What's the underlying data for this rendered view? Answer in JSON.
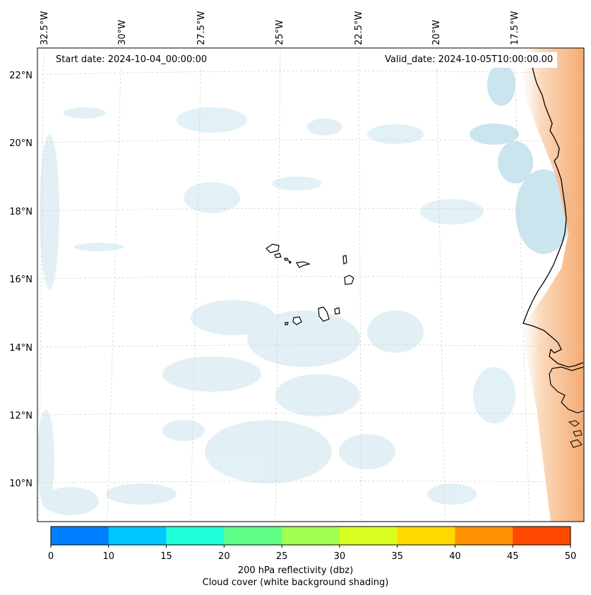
{
  "map": {
    "start_date_label": "Start date: 2024-10-04_00:00:00",
    "valid_date_label": "Valid_date: 2024-10-05T10:00:00.00",
    "longitude_labels": [
      "32.5°W",
      "30°W",
      "27.5°W",
      "25°W",
      "22.5°W",
      "20°W",
      "17.5°W"
    ],
    "latitude_labels": [
      "22°N",
      "20°N",
      "18°N",
      "16°N",
      "14°N",
      "12°N",
      "10°N"
    ],
    "colors": {
      "cloud_shading": "#b8dde8",
      "warm_field": "#f4a460",
      "coastline": "#000000",
      "gridline": "#cccccc"
    }
  },
  "colorbar": {
    "ticks": [
      "0",
      "10",
      "15",
      "20",
      "25",
      "30",
      "35",
      "40",
      "45",
      "50"
    ],
    "colors": [
      "#0080ff",
      "#00c8ff",
      "#20ffd8",
      "#60ff88",
      "#a0ff50",
      "#d8ff20",
      "#ffd800",
      "#ff9000",
      "#ff4800"
    ],
    "label": "200 hPa reflectivity (dbz)",
    "sublabel": "Cloud cover (white background shading)"
  }
}
